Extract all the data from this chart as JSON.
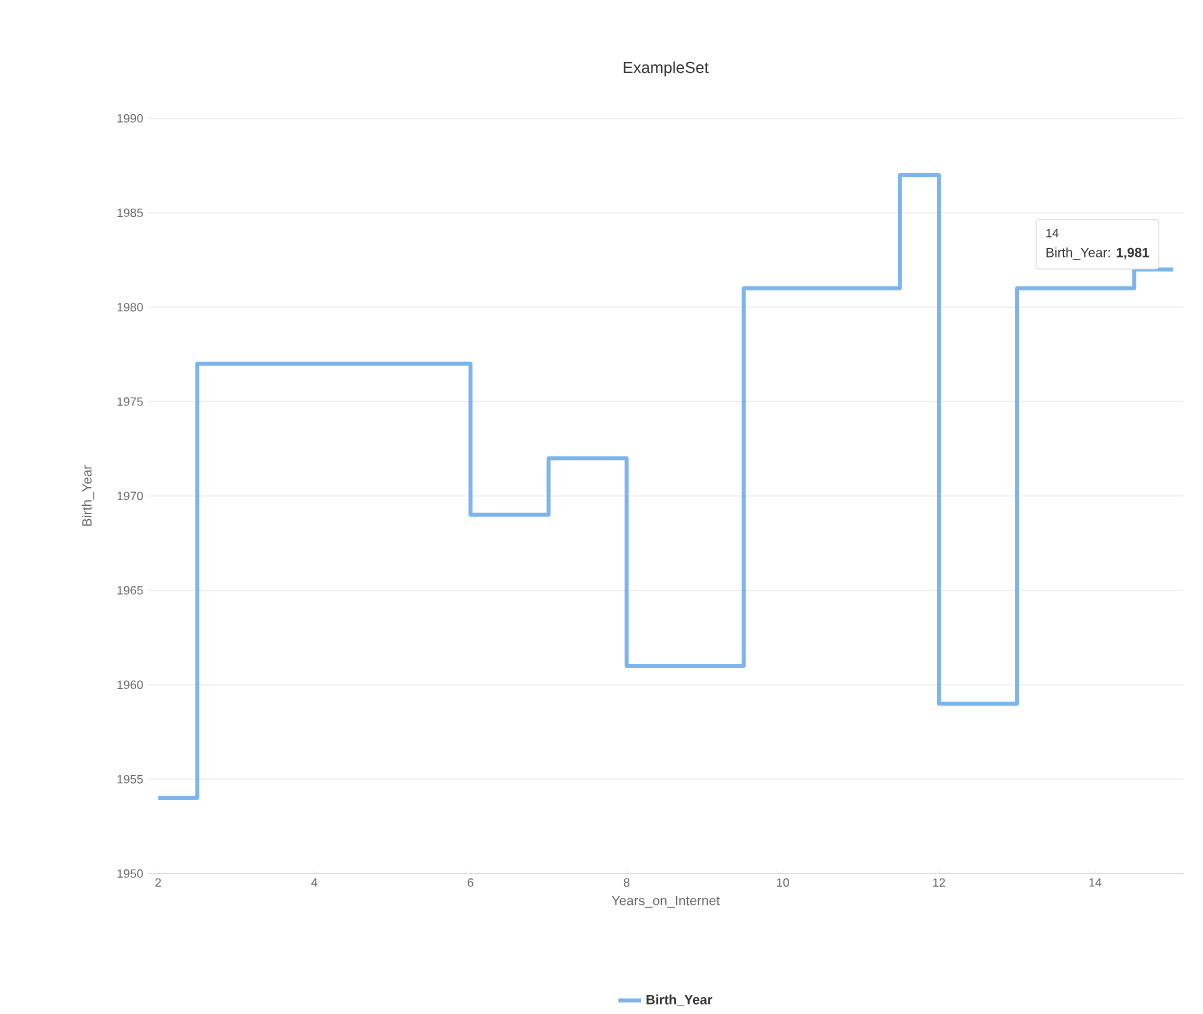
{
  "chart_data": {
    "type": "step",
    "title": "ExampleSet",
    "xlabel": "Years_on_Internet",
    "ylabel": "Birth_Year",
    "x": [
      2,
      2.5,
      6,
      7,
      8,
      9.5,
      11.5,
      12,
      13,
      14,
      14.5,
      15
    ],
    "series": [
      {
        "name": "Birth_Year",
        "color": "#7cb5ec",
        "values": [
          1954,
          1977,
          1969,
          1972,
          1961,
          1981,
          1987,
          1959,
          1981,
          1981,
          1982,
          1982
        ]
      }
    ],
    "xlim": [
      1.87,
      15.13
    ],
    "ylim": [
      1950,
      1990
    ],
    "xticks": [
      2,
      4,
      6,
      8,
      10,
      12,
      14
    ],
    "yticks": [
      1950,
      1955,
      1960,
      1965,
      1970,
      1975,
      1980,
      1985,
      1990
    ],
    "grid": "y",
    "legend": "bottom",
    "annotations": [
      "14",
      "Birth_Year: **1,981**"
    ]
  }
}
